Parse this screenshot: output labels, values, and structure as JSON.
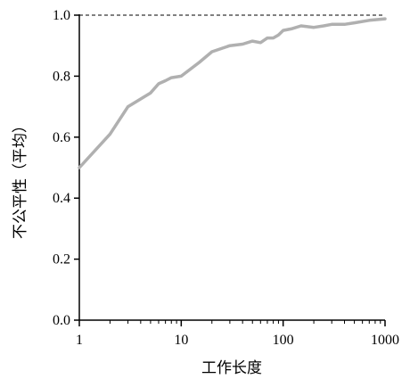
{
  "chart_data": {
    "type": "line",
    "title": "",
    "xlabel": "工作长度",
    "ylabel": "不公平性（平均）",
    "x_scale": "log",
    "xlim": [
      1,
      1000
    ],
    "ylim": [
      0,
      1
    ],
    "x_ticks": [
      1,
      10,
      100,
      1000
    ],
    "x_tick_labels": [
      "1",
      "10",
      "100",
      "1000"
    ],
    "y_ticks": [
      0,
      0.2,
      0.4,
      0.6,
      0.8,
      1.0
    ],
    "y_tick_labels": [
      "0.0",
      "0.2",
      "0.4",
      "0.6",
      "0.8",
      "1.0"
    ],
    "reference_line": {
      "y": 1.0,
      "style": "dashed"
    },
    "grid": false,
    "legend": "none",
    "colors": {
      "series": "#b0b0b0",
      "axis": "#000000"
    },
    "series": [
      {
        "x": [
          1,
          2,
          3,
          5,
          6,
          7,
          8,
          10,
          15,
          20,
          30,
          40,
          50,
          60,
          70,
          80,
          90,
          100,
          120,
          150,
          200,
          250,
          300,
          400,
          500,
          700,
          1000
        ],
        "y": [
          0.5,
          0.61,
          0.7,
          0.745,
          0.775,
          0.785,
          0.795,
          0.8,
          0.845,
          0.88,
          0.9,
          0.905,
          0.915,
          0.91,
          0.925,
          0.925,
          0.935,
          0.95,
          0.955,
          0.965,
          0.96,
          0.965,
          0.97,
          0.97,
          0.975,
          0.983,
          0.988
        ]
      }
    ]
  }
}
